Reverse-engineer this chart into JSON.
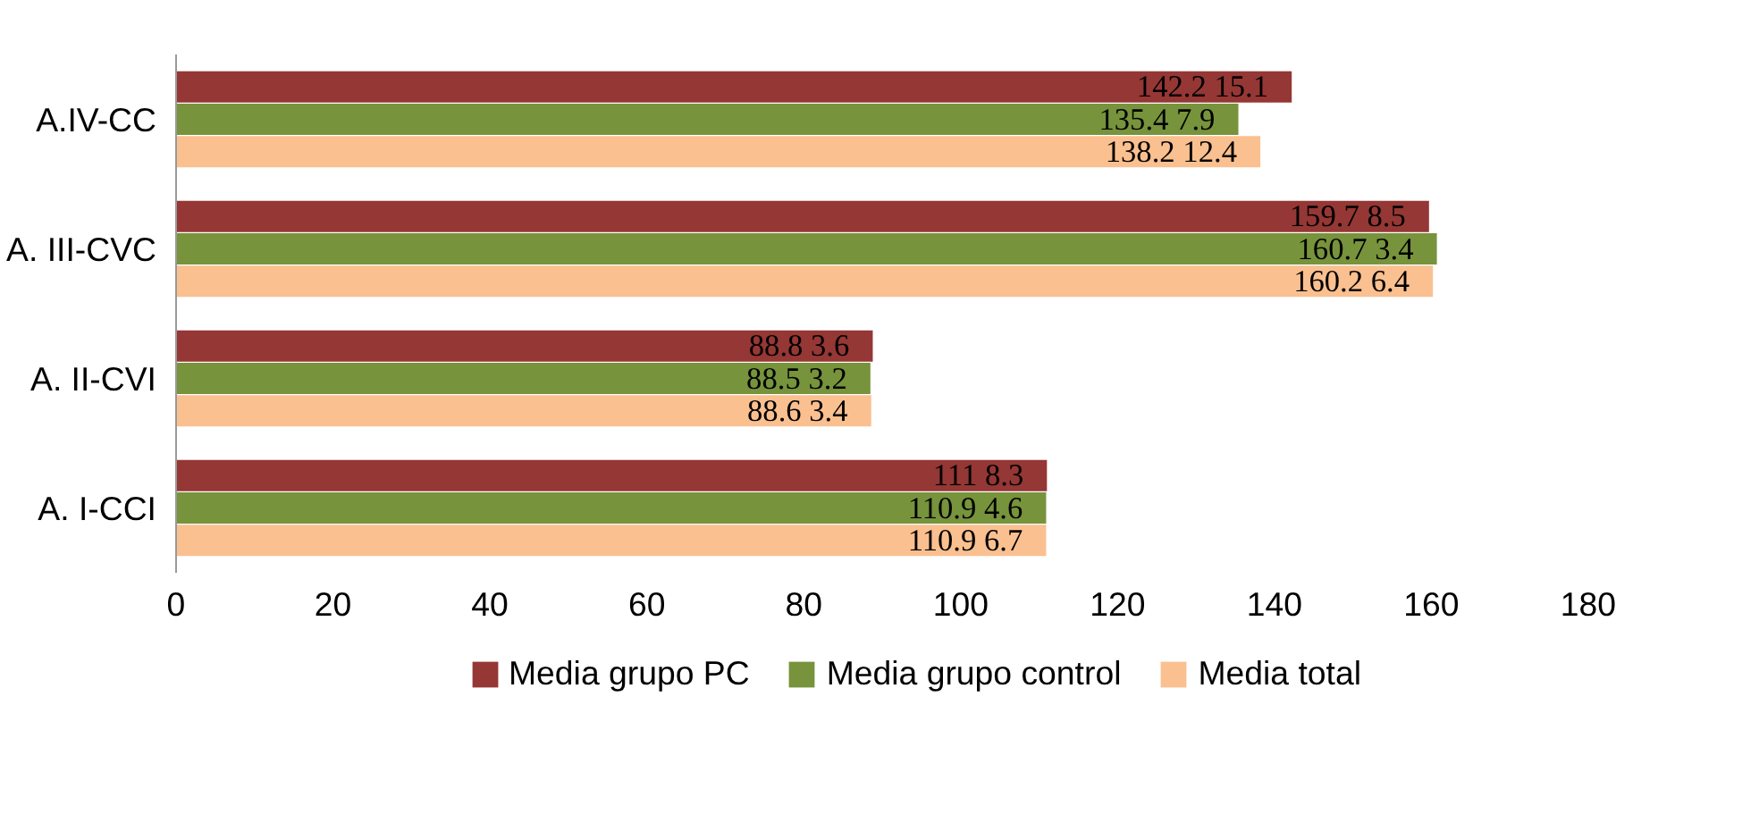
{
  "chart_data": {
    "type": "bar",
    "orientation": "horizontal",
    "categories": [
      "A.IV-CC",
      "A. III-CVC",
      "A. II-CVI",
      "A. I-CCI"
    ],
    "series": [
      {
        "name": "Media grupo PC",
        "color": "#953735",
        "values": [
          142.2,
          159.7,
          88.8,
          111
        ],
        "value_labels": [
          "142.2   15.1",
          "159.7   8.5",
          "88.8   3.6",
          "111   8.3"
        ]
      },
      {
        "name": "Media grupo control",
        "color": "#77933c",
        "values": [
          135.4,
          160.7,
          88.5,
          110.9
        ],
        "value_labels": [
          "135.4   7.9",
          "160.7   3.4",
          "88.5   3.2",
          "110.9   4.6"
        ]
      },
      {
        "name": "Media total",
        "color": "#fac090",
        "values": [
          138.2,
          160.2,
          88.6,
          110.9
        ],
        "value_labels": [
          "138.2   12.4",
          "160.2   6.4",
          "88.6   3.4",
          "110.9   6.7"
        ]
      }
    ],
    "xlim": [
      0,
      180
    ],
    "xticks": [
      0,
      20,
      40,
      60,
      80,
      100,
      120,
      140,
      160,
      180
    ],
    "legend": "bottom",
    "grid": false
  }
}
